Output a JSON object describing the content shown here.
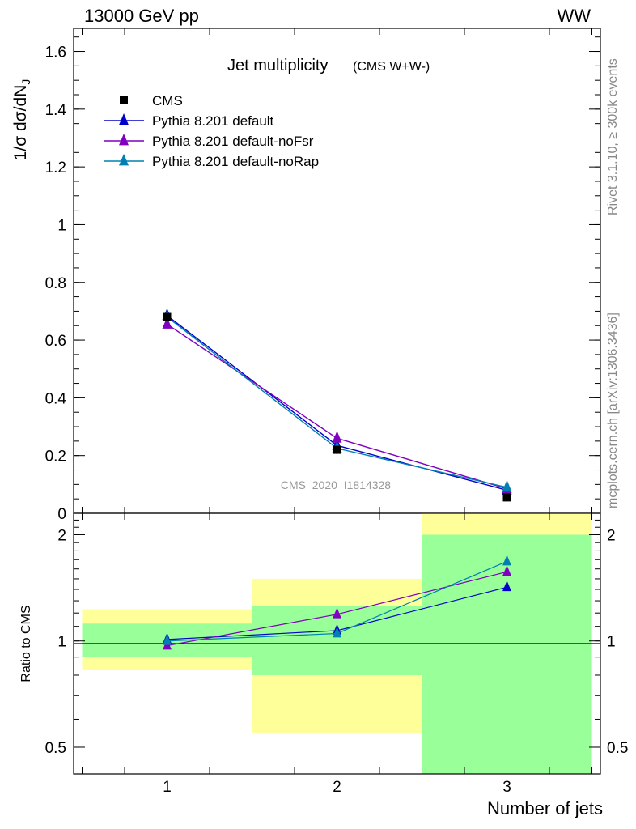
{
  "header": {
    "energy_label": "13000 GeV pp",
    "process_label": "WW"
  },
  "side_text": {
    "rivet": "Rivet 3.1.10, ≥ 300k events",
    "source": "mcplots.cern.ch [arXiv:1306.3436]"
  },
  "chart_data": [
    {
      "type": "line",
      "title": "Jet multiplicity",
      "subtitle": "(CMS W+W-)",
      "ylabel": "1/σ dσ/dN_J",
      "xlabel": "Number of jets",
      "watermark": "CMS_2020_I1814328",
      "x": [
        1,
        2,
        3
      ],
      "xlim": [
        0.45,
        3.55
      ],
      "ylim": [
        0,
        1.68
      ],
      "x_ticks": [
        "1",
        "2",
        "3"
      ],
      "y_ticks": [
        "0",
        "0.2",
        "0.4",
        "0.6",
        "0.8",
        "1",
        "1.2",
        "1.4",
        "1.6"
      ],
      "legend_position": "top-left",
      "series": [
        {
          "name": "CMS",
          "marker": "square",
          "color": "#000000",
          "values": [
            0.68,
            0.22,
            0.055
          ]
        },
        {
          "name": "Pythia 8.201 default",
          "marker": "triangle",
          "color": "#0000cc",
          "values": [
            0.685,
            0.235,
            0.08
          ]
        },
        {
          "name": "Pythia 8.201 default-noFsr",
          "marker": "triangle",
          "color": "#7f00bf",
          "values": [
            0.655,
            0.26,
            0.085
          ]
        },
        {
          "name": "Pythia 8.201 default-noRap",
          "marker": "triangle",
          "color": "#0080b0",
          "values": [
            0.68,
            0.225,
            0.09
          ]
        }
      ]
    },
    {
      "type": "line",
      "ylabel": "Ratio to CMS",
      "xlabel": "Number of jets",
      "x": [
        1,
        2,
        3
      ],
      "ylim": [
        0.42,
        2.3
      ],
      "log_scale_y": true,
      "y_ticks": [
        "0.5",
        "1",
        "2"
      ],
      "reference_line": 1,
      "uncertainty_bands": [
        {
          "x_range": [
            0.5,
            1.5
          ],
          "inner": [
            0.9,
            1.12
          ],
          "outer": [
            0.83,
            1.23
          ]
        },
        {
          "x_range": [
            1.5,
            2.5
          ],
          "inner": [
            0.8,
            1.26
          ],
          "outer": [
            0.55,
            1.5
          ]
        },
        {
          "x_range": [
            2.5,
            3.5
          ],
          "inner": [
            0.42,
            2.0
          ],
          "outer": [
            0.42,
            2.3
          ]
        }
      ],
      "band_colors": {
        "inner": "#99ff99",
        "outer": "#ffff99"
      },
      "series": [
        {
          "name": "Pythia 8.201 default",
          "color": "#0000cc",
          "values": [
            1.01,
            1.07,
            1.42
          ]
        },
        {
          "name": "Pythia 8.201 default-noFsr",
          "color": "#7f00bf",
          "values": [
            0.97,
            1.19,
            1.57
          ]
        },
        {
          "name": "Pythia 8.201 default-noRap",
          "color": "#0080b0",
          "values": [
            1.0,
            1.05,
            1.68
          ]
        }
      ]
    }
  ]
}
